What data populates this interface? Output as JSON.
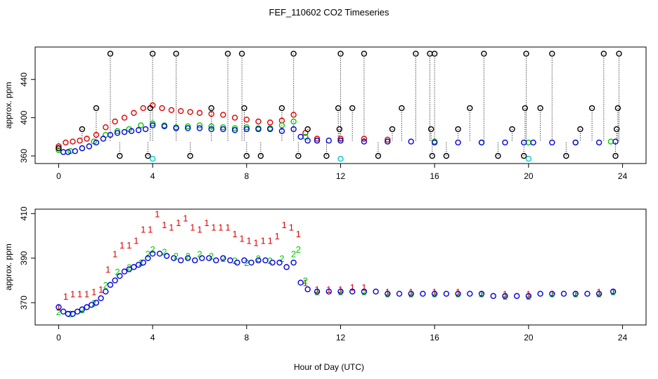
{
  "figure": {
    "title": "FEF_110602  CO2 Timeseries",
    "xlabel": "Hour of Day (UTC)"
  },
  "colors": {
    "black": "#000000",
    "red": "#e00000",
    "green": "#00cc00",
    "blue": "#0000dd",
    "cyan": "#00cccc"
  },
  "chart_data": [
    {
      "type": "scatter",
      "panel": "top",
      "title": "",
      "xlabel": "",
      "ylabel": "approx. ppm",
      "xlim": [
        -1,
        25
      ],
      "ylim": [
        352,
        474
      ],
      "xticks": [
        "0",
        "4",
        "8",
        "12",
        "16",
        "20",
        "24"
      ],
      "yticks": [
        "360",
        "400",
        "440"
      ],
      "series": [
        {
          "color": "red",
          "marker": "o",
          "x": [
            0,
            0.3,
            0.6,
            0.9,
            1.2,
            1.6,
            2.0,
            2.4,
            2.8,
            3.2,
            3.6,
            4.0,
            4.4,
            4.8,
            5.2,
            5.6,
            6.0,
            6.5,
            7.0,
            7.5,
            8.0,
            8.5,
            9.0,
            9.5,
            10.0,
            10.5,
            11.0,
            12.0,
            13.0,
            14.0
          ],
          "y": [
            370,
            374,
            375,
            376,
            378,
            382,
            390,
            396,
            400,
            405,
            410,
            413,
            410,
            408,
            407,
            406,
            405,
            404,
            403,
            400,
            398,
            396,
            395,
            397,
            403,
            384,
            378,
            378,
            378,
            377
          ]
        },
        {
          "color": "green",
          "marker": "o",
          "x": [
            0,
            0.5,
            1.0,
            1.5,
            2.0,
            2.5,
            3.0,
            3.5,
            4.0,
            4.5,
            5.0,
            5.5,
            6.0,
            6.5,
            7.0,
            7.5,
            8.0,
            8.5,
            9.0,
            9.5,
            10.0,
            10.5,
            11.0,
            12.0,
            14.0,
            16.0,
            18.0,
            20.0,
            22.0,
            23.5
          ],
          "y": [
            366,
            365,
            368,
            375,
            382,
            386,
            388,
            392,
            394,
            392,
            390,
            391,
            392,
            391,
            390,
            389,
            390,
            389,
            389,
            392,
            396,
            380,
            376,
            376,
            375,
            375,
            374,
            374,
            374,
            375
          ]
        },
        {
          "color": "blue",
          "marker": "o",
          "x": [
            0,
            0.2,
            0.4,
            0.7,
            1.0,
            1.3,
            1.6,
            1.9,
            2.2,
            2.5,
            2.8,
            3.1,
            3.4,
            3.7,
            4.0,
            4.5,
            5.0,
            5.5,
            6.0,
            6.5,
            7.0,
            7.5,
            8.0,
            8.5,
            9.0,
            9.5,
            10.0,
            10.3,
            10.6,
            11.0,
            11.5,
            12.0,
            13.0,
            14.0,
            15.0,
            16.0,
            17.0,
            18.0,
            19.0,
            19.8,
            20.2,
            21.0,
            22.0,
            23.0,
            23.7
          ],
          "y": [
            368,
            364,
            364,
            365,
            368,
            370,
            374,
            378,
            382,
            384,
            385,
            386,
            387,
            388,
            392,
            391,
            389,
            389,
            389,
            388,
            388,
            387,
            388,
            388,
            388,
            386,
            388,
            380,
            376,
            376,
            376,
            376,
            375,
            375,
            375,
            374,
            374,
            374,
            374,
            374,
            374,
            374,
            374,
            374,
            375
          ]
        },
        {
          "color": "black",
          "marker": "o",
          "x": [
            0,
            1.0,
            1.6,
            2.2,
            2.6,
            3.8,
            3.9,
            4.0,
            5.0,
            5.6,
            6.5,
            7.2,
            7.8,
            7.9,
            8.0,
            8.6,
            9.5,
            10.0,
            10.2,
            10.6,
            11.4,
            11.9,
            11.95,
            12.0,
            12.5,
            13.0,
            13.6,
            14.2,
            14.6,
            15.2,
            15.8,
            15.85,
            15.9,
            16.0,
            16.5,
            17.0,
            17.5,
            18.1,
            18.7,
            19.3,
            19.8,
            19.85,
            19.9,
            20.5,
            21.0,
            21.6,
            22.2,
            22.7,
            23.2,
            23.7,
            23.75,
            23.8,
            23.85
          ],
          "y": [
            368,
            388,
            410,
            467,
            360,
            360,
            410,
            467,
            467,
            360,
            410,
            467,
            467,
            410,
            360,
            360,
            410,
            467,
            360,
            388,
            360,
            410,
            388,
            467,
            410,
            467,
            360,
            388,
            410,
            467,
            467,
            388,
            360,
            467,
            360,
            388,
            410,
            467,
            360,
            388,
            360,
            410,
            467,
            410,
            467,
            360,
            388,
            410,
            467,
            360,
            388,
            410,
            467
          ]
        },
        {
          "color": "cyan",
          "marker": "o",
          "x": [
            4.0,
            12.0,
            20.0
          ],
          "y": [
            357,
            357,
            357
          ]
        }
      ]
    },
    {
      "type": "scatter",
      "panel": "bottom",
      "title": "",
      "xlabel": "Hour of Day (UTC)",
      "ylabel": "approx. ppm",
      "xlim": [
        -1,
        25
      ],
      "ylim": [
        360,
        412
      ],
      "xticks": [
        "0",
        "4",
        "8",
        "12",
        "16",
        "20",
        "24"
      ],
      "yticks": [
        "370",
        "390",
        "410"
      ],
      "series": [
        {
          "color": "red",
          "marker": "1",
          "x": [
            0,
            0.3,
            0.6,
            0.9,
            1.2,
            1.5,
            1.8,
            2.1,
            2.4,
            2.7,
            3.0,
            3.3,
            3.6,
            3.9,
            4.2,
            4.5,
            4.8,
            5.1,
            5.4,
            5.7,
            6.0,
            6.3,
            6.6,
            6.9,
            7.2,
            7.5,
            7.8,
            8.1,
            8.4,
            8.7,
            9.0,
            9.3,
            9.6,
            9.9,
            10.2,
            10.5,
            11.0,
            11.5,
            12.0,
            12.5,
            13.0,
            14.0,
            15.0,
            16.0,
            17.0,
            18.0,
            19.0,
            20.0,
            21.0,
            22.0,
            23.0,
            23.6
          ],
          "y": [
            368,
            373,
            374,
            374,
            374,
            375,
            376,
            385,
            392,
            396,
            396,
            398,
            403,
            403,
            410,
            405,
            404,
            406,
            408,
            404,
            403,
            406,
            404,
            404,
            404,
            401,
            399,
            398,
            397,
            398,
            398,
            400,
            405,
            404,
            401,
            379,
            376,
            376,
            376,
            377,
            377,
            375,
            375,
            375,
            375,
            374,
            374,
            374,
            374,
            374,
            375,
            375
          ]
        },
        {
          "color": "green",
          "marker": "2",
          "x": [
            0,
            0.5,
            1.0,
            1.5,
            2.0,
            2.5,
            3.0,
            3.5,
            3.8,
            4.0,
            4.5,
            5.0,
            5.5,
            6.0,
            6.5,
            7.0,
            7.5,
            8.0,
            8.5,
            9.0,
            9.5,
            10.0,
            10.2,
            10.5,
            11.0,
            12.0,
            13.0,
            14.0,
            15.0,
            16.0,
            17.0,
            18.0,
            19.0,
            20.0,
            21.0,
            22.0,
            23.0,
            23.6
          ],
          "y": [
            366,
            365,
            367,
            370,
            378,
            384,
            386,
            388,
            392,
            394,
            393,
            391,
            391,
            392,
            391,
            390,
            389,
            388,
            390,
            389,
            390,
            392,
            394,
            380,
            375,
            375,
            375,
            374,
            374,
            374,
            374,
            374,
            373,
            373,
            374,
            374,
            374,
            375
          ]
        },
        {
          "color": "blue",
          "marker": "o",
          "x": [
            0,
            0.2,
            0.4,
            0.6,
            0.8,
            1.0,
            1.2,
            1.4,
            1.6,
            1.8,
            2.0,
            2.2,
            2.4,
            2.6,
            2.8,
            3.0,
            3.2,
            3.4,
            3.6,
            3.8,
            4.0,
            4.3,
            4.6,
            4.9,
            5.2,
            5.5,
            5.8,
            6.1,
            6.4,
            6.7,
            7.0,
            7.3,
            7.6,
            7.9,
            8.2,
            8.5,
            8.8,
            9.1,
            9.4,
            9.7,
            10.0,
            10.3,
            10.6,
            11.0,
            11.5,
            12.0,
            12.5,
            13.0,
            13.5,
            14.0,
            14.5,
            15.0,
            15.5,
            16.0,
            16.5,
            17.0,
            17.5,
            18.0,
            18.5,
            19.0,
            19.5,
            20.0,
            20.5,
            21.0,
            21.5,
            22.0,
            22.5,
            23.0,
            23.6
          ],
          "y": [
            368,
            366,
            365,
            365,
            366,
            367,
            368,
            369,
            370,
            372,
            375,
            378,
            380,
            382,
            384,
            385,
            386,
            387,
            388,
            390,
            392,
            392,
            391,
            390,
            389,
            390,
            389,
            390,
            390,
            389,
            390,
            389,
            388,
            389,
            388,
            389,
            389,
            388,
            388,
            386,
            388,
            379,
            376,
            375,
            375,
            375,
            375,
            375,
            375,
            374,
            374,
            374,
            374,
            374,
            374,
            374,
            374,
            374,
            373,
            373,
            373,
            373,
            374,
            374,
            374,
            374,
            374,
            374,
            375
          ]
        }
      ]
    }
  ]
}
